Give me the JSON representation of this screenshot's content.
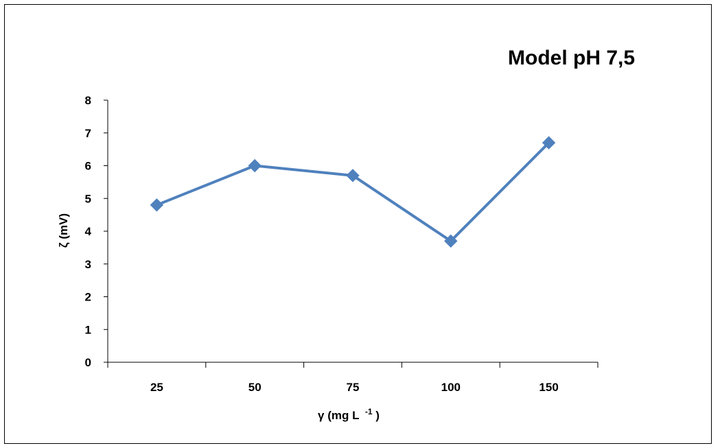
{
  "chart_data": {
    "type": "line",
    "title": "Model pH 7,5",
    "categories": [
      "25",
      "50",
      "75",
      "100",
      "150"
    ],
    "series": [
      {
        "values": [
          4.8,
          6.0,
          5.7,
          3.7,
          6.7
        ]
      }
    ],
    "xlabel": "γ (mg L",
    "xlabel_superscript": "-1",
    "xlabel_suffix": ")",
    "ylabel": "ζ (mV)",
    "ylim": [
      0,
      8
    ],
    "yticks": [
      "0",
      "1",
      "2",
      "3",
      "4",
      "5",
      "6",
      "7",
      "8"
    ],
    "grid": false,
    "legend": "none",
    "colors": {
      "series": "#4F81BD",
      "axis": "#000000"
    },
    "marker": "diamond-icon"
  }
}
